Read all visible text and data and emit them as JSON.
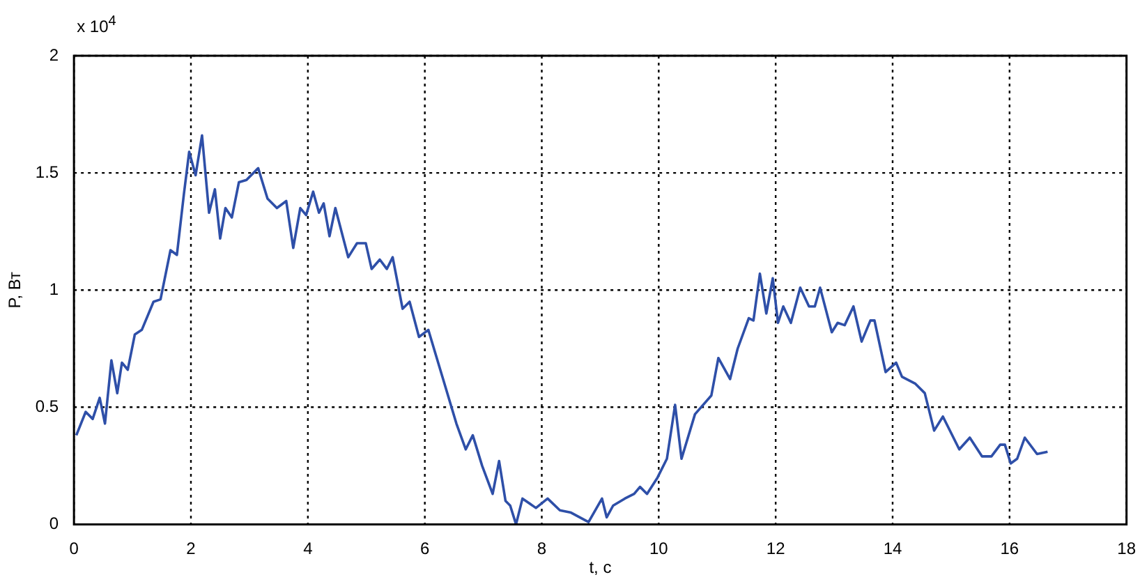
{
  "chart_data": {
    "type": "line",
    "xlabel": "t, c",
    "ylabel": "P, Вт",
    "annotations": [
      "x 10$^{4}$"
    ],
    "xlim": [
      0,
      18
    ],
    "xticks": [
      0,
      2,
      4,
      6,
      8,
      10,
      12,
      14,
      16,
      18
    ],
    "ylim": [
      0,
      2
    ],
    "yticks": [
      0,
      0.5,
      1,
      1.5,
      2
    ],
    "grid": true,
    "legend": false,
    "marker": "none",
    "line_style": "solid",
    "series": [
      {
        "color": "#2e4fa8",
        "x": [
          0.04,
          0.2,
          0.32,
          0.44,
          0.53,
          0.64,
          0.74,
          0.82,
          0.92,
          1.04,
          1.16,
          1.36,
          1.48,
          1.65,
          1.76,
          1.88,
          1.97,
          2.08,
          2.19,
          2.31,
          2.41,
          2.5,
          2.59,
          2.7,
          2.82,
          2.95,
          3.15,
          3.31,
          3.47,
          3.63,
          3.75,
          3.87,
          3.97,
          4.09,
          4.19,
          4.27,
          4.37,
          4.47,
          4.69,
          4.84,
          4.99,
          5.09,
          5.23,
          5.35,
          5.45,
          5.62,
          5.74,
          5.9,
          6.06,
          6.3,
          6.54,
          6.7,
          6.82,
          6.98,
          7.16,
          7.27,
          7.38,
          7.46,
          7.56,
          7.67,
          7.9,
          8.1,
          8.31,
          8.5,
          8.8,
          9.03,
          9.11,
          9.22,
          9.42,
          9.58,
          9.68,
          9.8,
          9.98,
          10.14,
          10.28,
          10.39,
          10.62,
          10.9,
          11.02,
          11.22,
          11.35,
          11.54,
          11.62,
          11.73,
          11.84,
          11.95,
          12.04,
          12.13,
          12.26,
          12.42,
          12.57,
          12.67,
          12.76,
          12.96,
          13.06,
          13.18,
          13.33,
          13.47,
          13.62,
          13.69,
          13.88,
          14.06,
          14.16,
          14.39,
          14.55,
          14.71,
          14.86,
          15.14,
          15.32,
          15.53,
          15.69,
          15.84,
          15.92,
          16.02,
          16.13,
          16.26,
          16.47,
          16.65
        ],
        "values": [
          0.38,
          0.48,
          0.45,
          0.54,
          0.43,
          0.7,
          0.56,
          0.69,
          0.66,
          0.81,
          0.83,
          0.95,
          0.96,
          1.17,
          1.15,
          1.41,
          1.59,
          1.49,
          1.66,
          1.33,
          1.43,
          1.22,
          1.35,
          1.31,
          1.46,
          1.47,
          1.52,
          1.39,
          1.35,
          1.38,
          1.18,
          1.35,
          1.32,
          1.42,
          1.33,
          1.37,
          1.23,
          1.35,
          1.14,
          1.2,
          1.2,
          1.09,
          1.13,
          1.09,
          1.14,
          0.92,
          0.95,
          0.8,
          0.83,
          0.63,
          0.43,
          0.32,
          0.38,
          0.25,
          0.13,
          0.27,
          0.1,
          0.08,
          0.0,
          0.11,
          0.07,
          0.11,
          0.06,
          0.05,
          0.01,
          0.11,
          0.03,
          0.08,
          0.11,
          0.13,
          0.16,
          0.13,
          0.2,
          0.28,
          0.51,
          0.28,
          0.47,
          0.55,
          0.71,
          0.62,
          0.75,
          0.88,
          0.87,
          1.07,
          0.9,
          1.05,
          0.86,
          0.93,
          0.86,
          1.01,
          0.93,
          0.93,
          1.01,
          0.82,
          0.86,
          0.85,
          0.93,
          0.78,
          0.87,
          0.87,
          0.65,
          0.69,
          0.63,
          0.6,
          0.56,
          0.4,
          0.46,
          0.32,
          0.37,
          0.29,
          0.29,
          0.34,
          0.34,
          0.26,
          0.28,
          0.37,
          0.3,
          0.31
        ]
      }
    ]
  }
}
